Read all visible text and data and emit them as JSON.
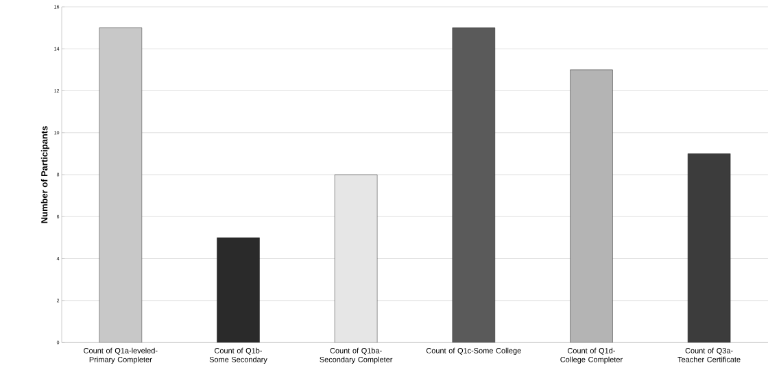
{
  "chart_data": {
    "type": "bar",
    "ylabel": "Number of Participants",
    "categories": [
      "Count of Q1a-leveled-Primary Completer",
      "Count of Q1b-Some Secondary",
      "Count of Q1ba-Secondary Completer",
      "Count of Q1c-Some College",
      "Count of Q1d-College Completer",
      "Count of Q3a-Teacher Certificate"
    ],
    "values": [
      15,
      5,
      8,
      15,
      13,
      9
    ],
    "colors": [
      "#c8c8c8",
      "#2a2a2a",
      "#e6e6e6",
      "#5a5a5a",
      "#b4b4b4",
      "#3c3c3c"
    ],
    "ylim": [
      0,
      16
    ],
    "yticks": [
      0,
      2,
      4,
      6,
      8,
      10,
      12,
      14,
      16
    ],
    "grid": "y"
  }
}
